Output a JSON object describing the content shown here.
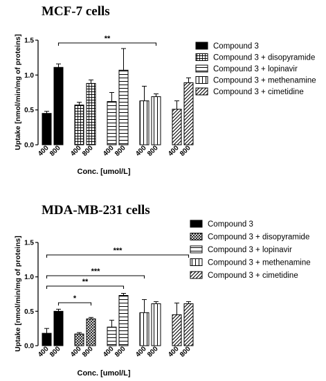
{
  "chart_data": [
    {
      "type": "bar",
      "title": "MCF-7 cells",
      "ylabel": "Uptake [nmol/min/mg of proteins]",
      "xlabel": "Conc. [umol/L]",
      "ylim": [
        0,
        1.5
      ],
      "yticks": [
        "0.0",
        "0.5",
        "1.0",
        "1.5"
      ],
      "categories": [
        "400",
        "800"
      ],
      "legend_position": "right",
      "series": [
        {
          "name": "Compound 3",
          "values": [
            0.45,
            1.11
          ],
          "errors": [
            0.03,
            0.05
          ]
        },
        {
          "name": "Compound 3 + disopyramide",
          "values": [
            0.57,
            0.88
          ],
          "errors": [
            0.04,
            0.05
          ]
        },
        {
          "name": "Compound 3 + lopinavir",
          "values": [
            0.62,
            1.07
          ],
          "errors": [
            0.13,
            0.31
          ]
        },
        {
          "name": "Compound 3 + methenamine",
          "values": [
            0.63,
            0.69
          ],
          "errors": [
            0.21,
            0.04
          ]
        },
        {
          "name": "Compound 3 + cimetidine",
          "values": [
            0.51,
            0.89
          ],
          "errors": [
            0.12,
            0.07
          ]
        }
      ],
      "annotations": [
        {
          "text": "**",
          "from": "Compound 3 800",
          "to": "Compound 3 + methenamine 800"
        }
      ]
    },
    {
      "type": "bar",
      "title": "MDA-MB-231 cells",
      "ylabel": "Uptake [nmol/min/mg of proteins]",
      "xlabel": "Conc. [umol/L]",
      "ylim": [
        0,
        1.5
      ],
      "yticks": [
        "0.0",
        "0.5",
        "1.0",
        "1.5"
      ],
      "categories": [
        "400",
        "800"
      ],
      "legend_position": "right",
      "series": [
        {
          "name": "Compound 3",
          "values": [
            0.18,
            0.5
          ],
          "errors": [
            0.07,
            0.03
          ]
        },
        {
          "name": "Compound 3 + disopyramide",
          "values": [
            0.17,
            0.39
          ],
          "errors": [
            0.02,
            0.02
          ]
        },
        {
          "name": "Compound 3 + lopinavir",
          "values": [
            0.27,
            0.73
          ],
          "errors": [
            0.1,
            0.03
          ]
        },
        {
          "name": "Compound 3 + methenamine",
          "values": [
            0.48,
            0.61
          ],
          "errors": [
            0.19,
            0.03
          ]
        },
        {
          "name": "Compound 3 + cimetidine",
          "values": [
            0.45,
            0.61
          ],
          "errors": [
            0.17,
            0.03
          ]
        }
      ],
      "annotations": [
        {
          "text": "***",
          "from": "Compound 3 400",
          "to": "Compound 3 + cimetidine 800"
        },
        {
          "text": "***",
          "from": "Compound 3 400",
          "to": "Compound 3 + methenamine 400"
        },
        {
          "text": "**",
          "from": "Compound 3 400",
          "to": "Compound 3 + lopinavir 800"
        },
        {
          "text": "*",
          "from": "Compound 3 800",
          "to": "Compound 3 + disopyramide 800"
        }
      ]
    }
  ]
}
